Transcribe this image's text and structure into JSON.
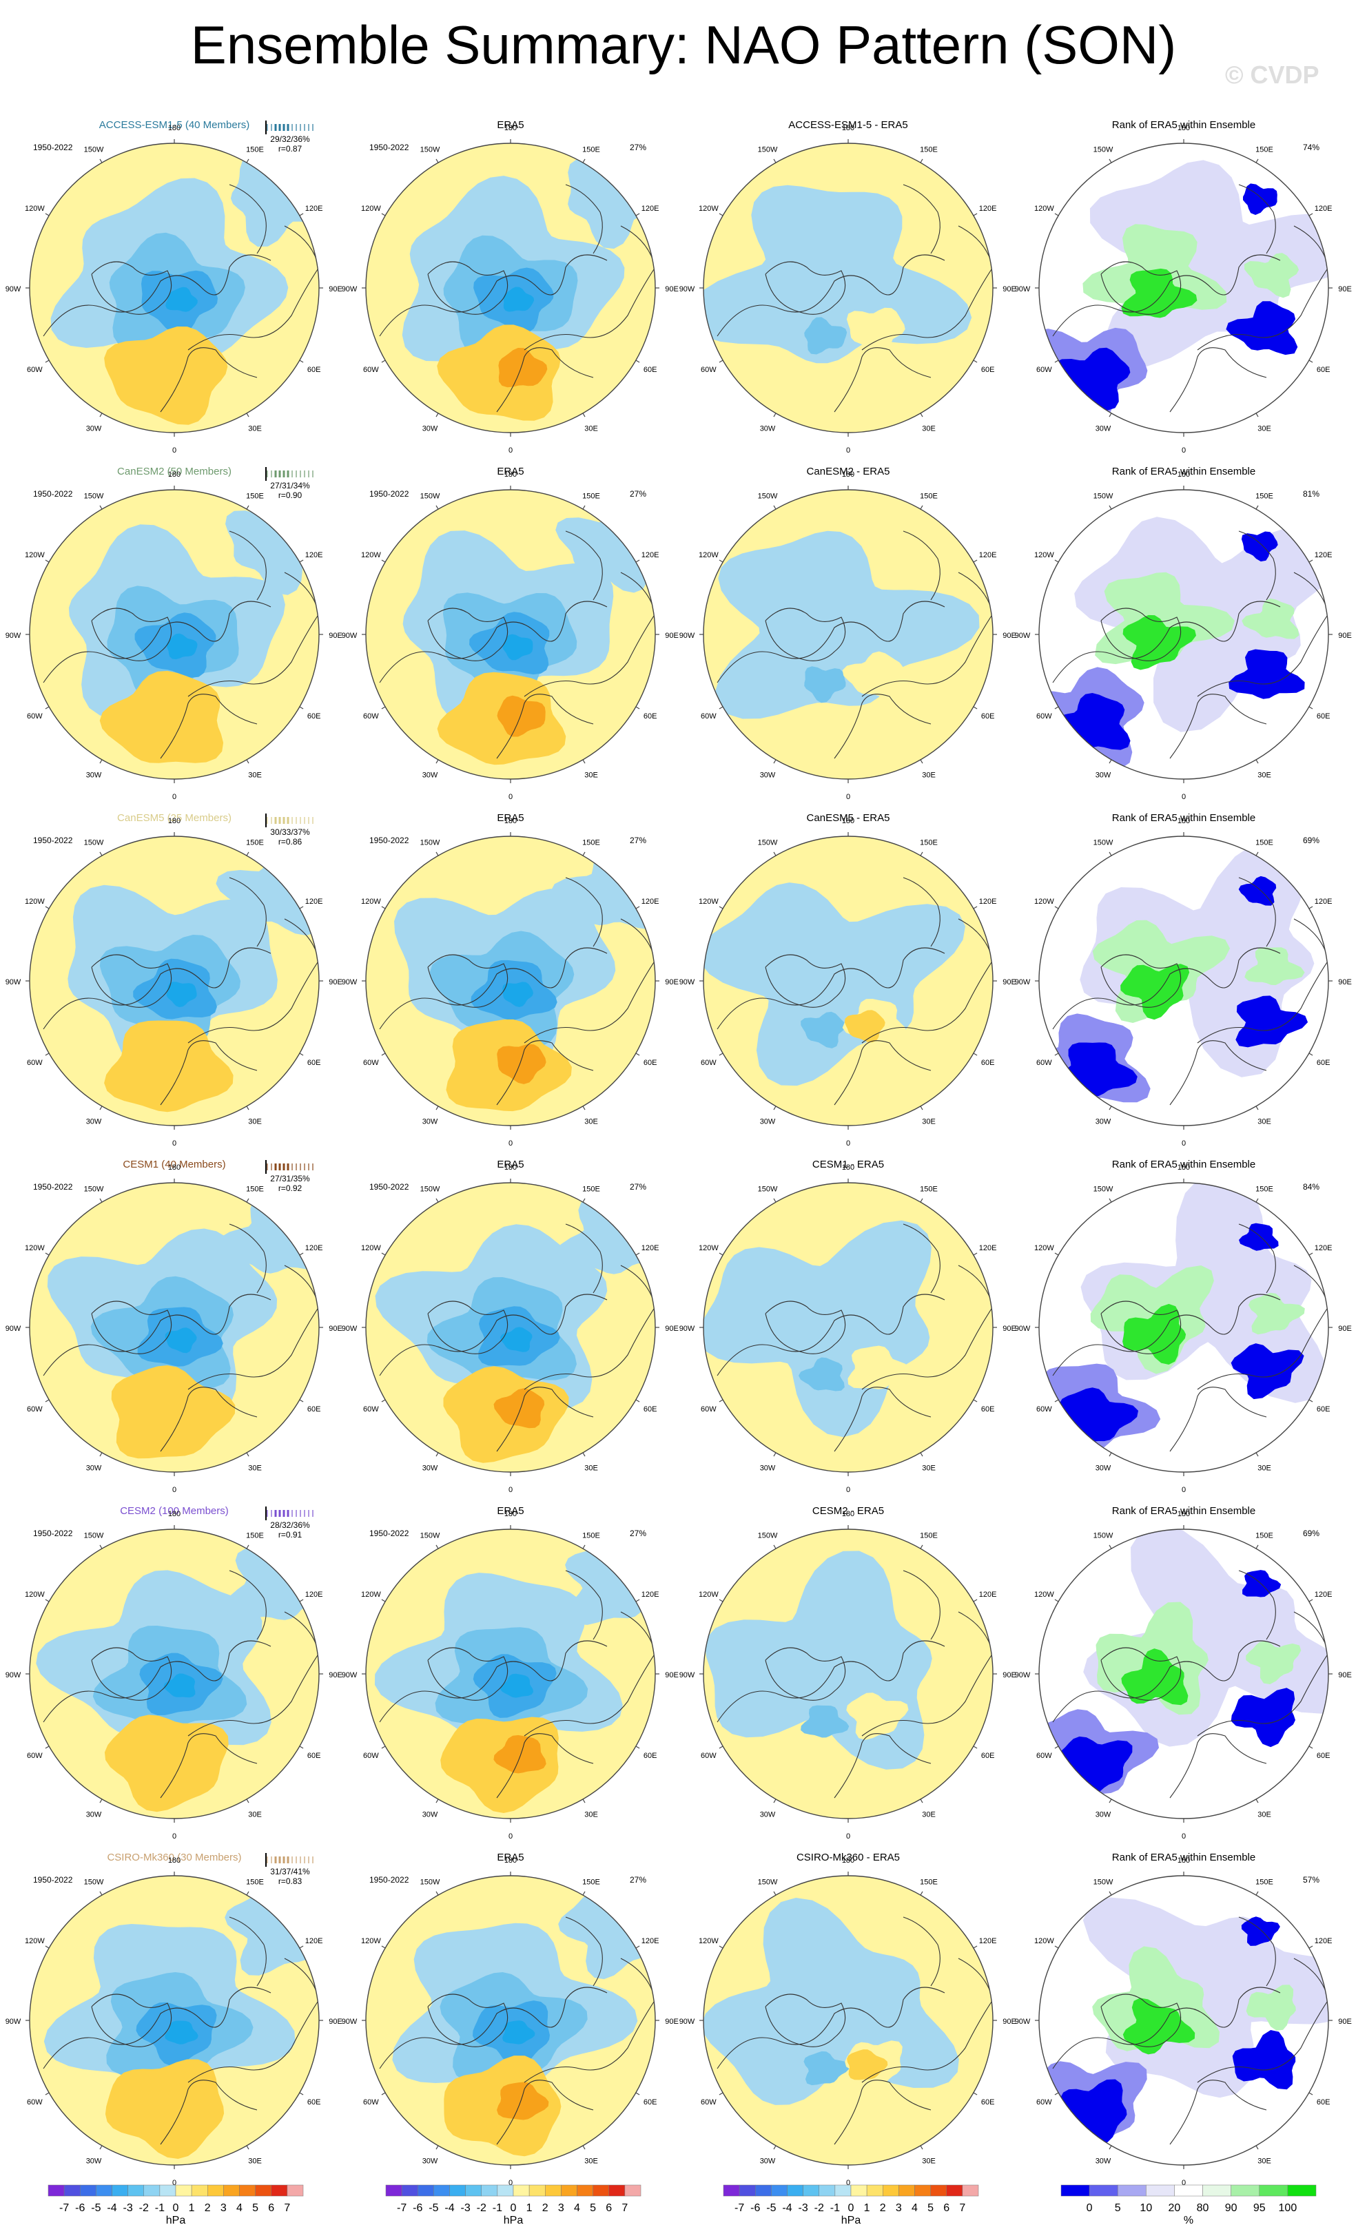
{
  "title": "Ensemble Summary: NAO Pattern (SON)",
  "watermark": "© CVDP",
  "period": "1950-2022",
  "lon_labels": {
    "top": "180",
    "bottom": "0",
    "left": "90W",
    "right": "90E",
    "upper_left_1": "150W",
    "upper_left_2": "120W",
    "upper_right_1": "150E",
    "upper_right_2": "120E",
    "lower_left_1": "60W",
    "lower_left_2": "30W",
    "lower_right_1": "60E",
    "lower_right_2": "30E"
  },
  "column_titles": {
    "obs": "ERA5",
    "rank": "Rank of ERA5 within Ensemble"
  },
  "obs_variance": "27%",
  "colors": {
    "neg1": "#a6d8f0",
    "neg2": "#73c4ec",
    "neg3": "#3da9ea",
    "neg4": "#1aa7ea",
    "pos1": "#fff5a0",
    "pos2": "#fdd247",
    "pos3": "#f7a21a",
    "pos4": "#ec6b12",
    "rank_low": "#0000ee",
    "rank_mid": "#8e8ef2",
    "rank_pale": "#dcdcf8",
    "rank_green": "#2ee62e",
    "rank_lightgreen": "#b8f5b8"
  },
  "rows": [
    {
      "model": "ACCESS-ESM1-5 (40 Members)",
      "color": "#2a7a9c",
      "pct": "29/32/36%",
      "r": "r=0.87",
      "diff": "ACCESS-ESM1-5 - ERA5",
      "rank_pct": "74%"
    },
    {
      "model": "CanESM2 (50 Members)",
      "color": "#6e9a6e",
      "pct": "27/31/34%",
      "r": "r=0.90",
      "diff": "CanESM2 - ERA5",
      "rank_pct": "81%"
    },
    {
      "model": "CanESM5 (25 Members)",
      "color": "#d9cc8a",
      "pct": "30/33/37%",
      "r": "r=0.86",
      "diff": "CanESM5 - ERA5",
      "rank_pct": "69%"
    },
    {
      "model": "CESM1 (40 Members)",
      "color": "#8a4a1c",
      "pct": "27/31/35%",
      "r": "r=0.92",
      "diff": "CESM1 - ERA5",
      "rank_pct": "84%"
    },
    {
      "model": "CESM2 (100 Members)",
      "color": "#7a4fd0",
      "pct": "28/32/36%",
      "r": "r=0.91",
      "diff": "CESM2 - ERA5",
      "rank_pct": "69%"
    },
    {
      "model": "CSIRO-Mk360 (30 Members)",
      "color": "#c8a070",
      "pct": "31/37/41%",
      "r": "r=0.83",
      "diff": "CSIRO-Mk360 - ERA5",
      "rank_pct": "57%"
    }
  ],
  "colorbar": {
    "hpa_labels": [
      "-7",
      "-6",
      "-5",
      "-4",
      "-3",
      "-2",
      "-1",
      "0",
      "1",
      "2",
      "3",
      "4",
      "5",
      "6",
      "7"
    ],
    "hpa_unit": "hPa",
    "hpa_colors": [
      "#7d28d8",
      "#5050e0",
      "#3c6ee8",
      "#3c8ef0",
      "#3aaef0",
      "#5ec2f0",
      "#8ed3f2",
      "#b8e4f4",
      "#fff5a0",
      "#fde26a",
      "#fdc83a",
      "#f9a420",
      "#f57e16",
      "#ec5210",
      "#e02818",
      "#f3a8a8"
    ],
    "rank_labels": [
      "0",
      "5",
      "10",
      "20",
      "80",
      "90",
      "95",
      "100"
    ],
    "rank_unit": "%",
    "rank_colors": [
      "#0000ee",
      "#6060ee",
      "#a8a8f2",
      "#e6e6f8",
      "#ffffff",
      "#e6f8e6",
      "#a8f0a8",
      "#5ee85e",
      "#10e010"
    ]
  }
}
